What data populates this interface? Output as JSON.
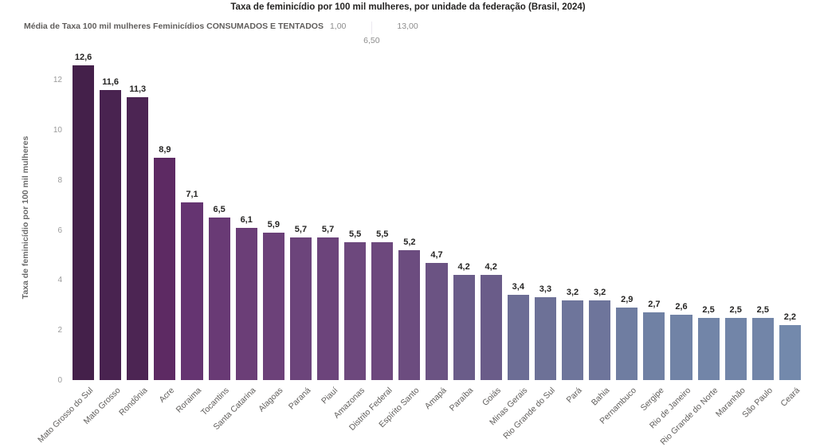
{
  "title": "Taxa de feminicídio por 100 mil mulheres, por unidade da federação (Brasil, 2024)",
  "legend": {
    "label": "Média de Taxa 100 mil mulheres Feminicídios CONSUMADOS E TENTADOS",
    "min_label": "1,00",
    "mid_label": "6,50",
    "max_label": "13,00",
    "gradient_low_color": "#a7b1ce",
    "gradient_mid_color": "#6d4379",
    "gradient_high_color": "#421f48"
  },
  "chart_data": {
    "type": "bar",
    "title": "Taxa de feminicídio por 100 mil mulheres, por unidade da federação (Brasil, 2024)",
    "xlabel": "",
    "ylabel": "Taxa de feminicídio por 100 mil mulheres",
    "ylim": [
      0,
      13
    ],
    "yticks": [
      0,
      2,
      4,
      6,
      8,
      10,
      12
    ],
    "grid": false,
    "legend_position": "top-left",
    "decimal_separator": ",",
    "categories": [
      "Mato Grosso do Sul",
      "Mato Grosso",
      "Rondônia",
      "Acre",
      "Roraima",
      "Tocantins",
      "Santa Catarina",
      "Alagoas",
      "Paraná",
      "Piauí",
      "Amazonas",
      "Distrito Federal",
      "Espírito Santo",
      "Amapá",
      "Paraíba",
      "Goiás",
      "Minas Gerais",
      "Rio Grande do Sul",
      "Pará",
      "Bahia",
      "Pernambuco",
      "Sergipe",
      "Rio de Janeiro",
      "Rio Grande do Norte",
      "Maranhão",
      "São Paulo",
      "Ceará"
    ],
    "values": [
      12.6,
      11.6,
      11.3,
      8.9,
      7.1,
      6.5,
      6.1,
      5.9,
      5.7,
      5.7,
      5.5,
      5.5,
      5.2,
      4.7,
      4.2,
      4.2,
      3.4,
      3.3,
      3.2,
      3.2,
      2.9,
      2.7,
      2.6,
      2.5,
      2.5,
      2.5,
      2.2
    ],
    "value_labels": [
      "12,6",
      "11,6",
      "11,3",
      "8,9",
      "7,1",
      "6,5",
      "6,1",
      "5,9",
      "5,7",
      "5,7",
      "5,5",
      "5,5",
      "5,2",
      "4,7",
      "4,2",
      "4,2",
      "3,4",
      "3,3",
      "3,2",
      "3,2",
      "2,9",
      "2,7",
      "2,6",
      "2,5",
      "2,5",
      "2,5",
      "2,2"
    ],
    "bar_colors": [
      "#44204a",
      "#492350",
      "#4c2553",
      "#5d2a63",
      "#653471",
      "#693a75",
      "#6b3e77",
      "#6c4179",
      "#6c447b",
      "#6c447b",
      "#6d487d",
      "#6d487d",
      "#6c4c7f",
      "#6b5383",
      "#6a5c89",
      "#6a5c89",
      "#6c6d95",
      "#6d7197",
      "#6e759b",
      "#6e759b",
      "#6f7da1",
      "#7081a4",
      "#7183a6",
      "#7285a8",
      "#7285a8",
      "#7285a8",
      "#7389ac"
    ]
  }
}
